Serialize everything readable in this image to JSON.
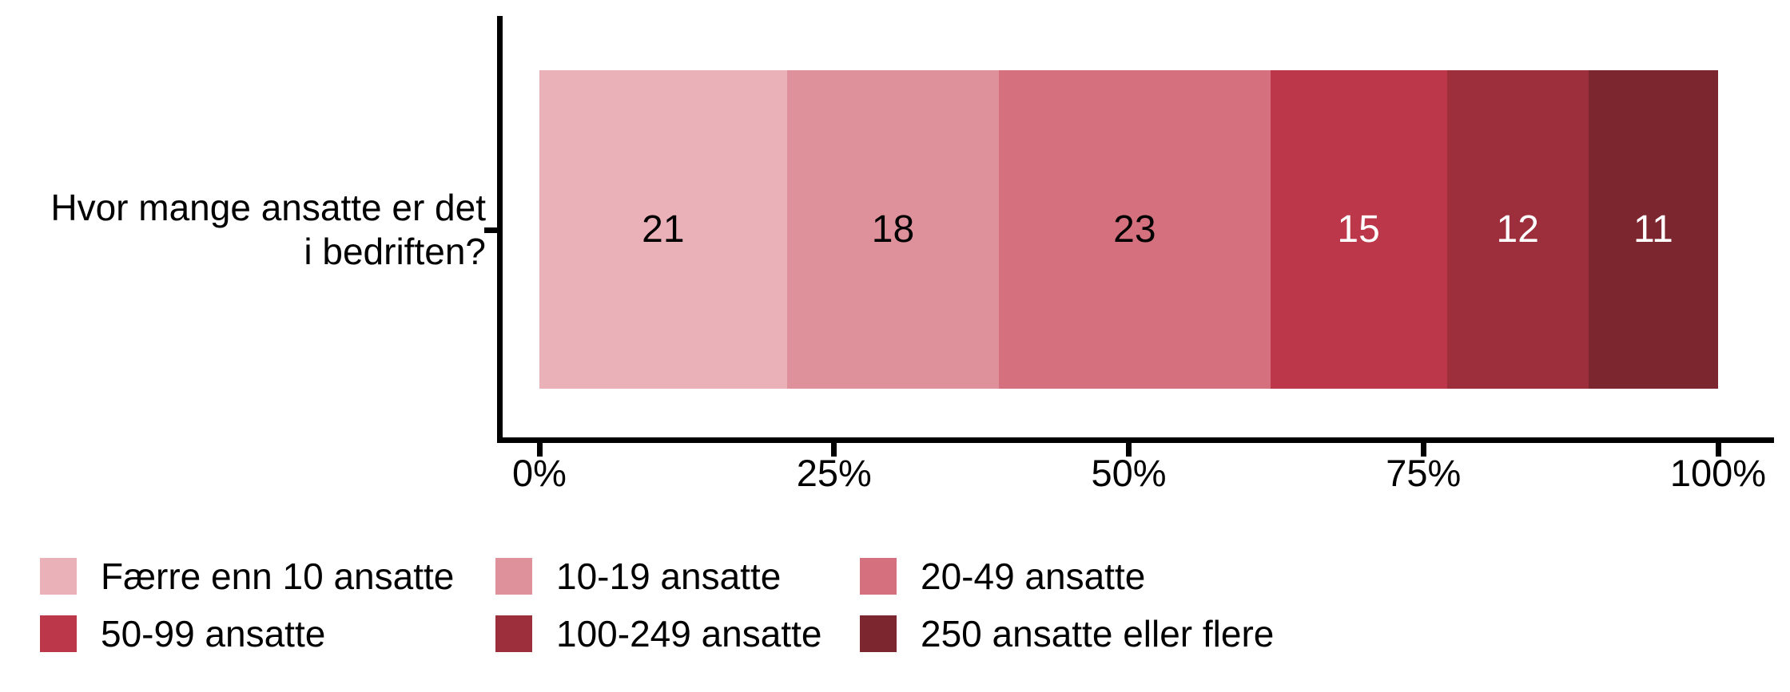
{
  "chart_data": {
    "type": "bar",
    "subtype": "horizontal-stacked-percent",
    "title": "",
    "question": "Hvor mange ansatte er det i bedriften?",
    "y_axis": {
      "label_lines": [
        "Hvor mange ansatte er det",
        "i bedriften?"
      ]
    },
    "x_axis": {
      "range": [
        0,
        100
      ],
      "unit": "%",
      "ticks": [
        {
          "label": "0%",
          "value": 0
        },
        {
          "label": "25%",
          "value": 25
        },
        {
          "label": "50%",
          "value": 50
        },
        {
          "label": "75%",
          "value": 75
        },
        {
          "label": "100%",
          "value": 100
        }
      ]
    },
    "series": [
      {
        "name": "Færre enn 10 ansatte",
        "value": 21,
        "color": "#EAB1B8",
        "value_label_color": "#000000"
      },
      {
        "name": "10-19 ansatte",
        "value": 18,
        "color": "#DE919B",
        "value_label_color": "#000000"
      },
      {
        "name": "20-49 ansatte",
        "value": 23,
        "color": "#D5717E",
        "value_label_color": "#000000"
      },
      {
        "name": "50-99 ansatte",
        "value": 15,
        "color": "#BC3749",
        "value_label_color": "#FFFFFF"
      },
      {
        "name": "100-249 ansatte",
        "value": 12,
        "color": "#9D2F3C",
        "value_label_color": "#FFFFFF"
      },
      {
        "name": "250 ansatte eller flere",
        "value": 11,
        "color": "#7C2630",
        "value_label_color": "#FFFFFF"
      }
    ],
    "legend": {
      "position": "bottom",
      "rows": 2,
      "columns": 3
    },
    "axis_color": "#000000",
    "text_color": "#000000",
    "background": "#FFFFFF",
    "grid": false
  }
}
